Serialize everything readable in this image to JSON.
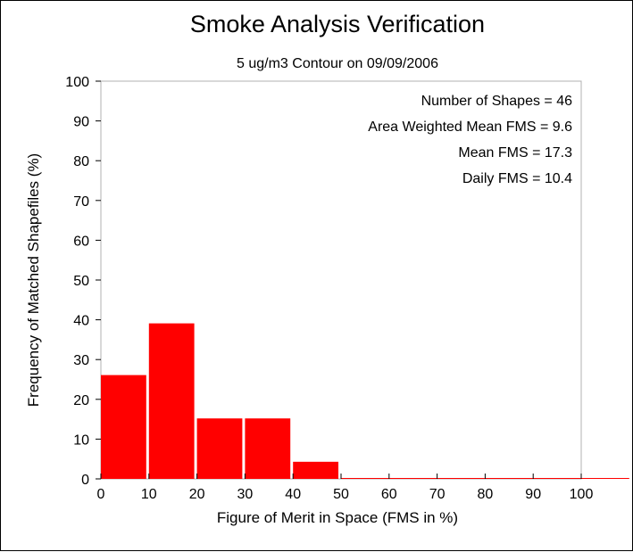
{
  "chart_data": {
    "type": "bar",
    "title": "Smoke Analysis Verification",
    "subtitle": "5 ug/m3 Contour on 09/09/2006",
    "xlabel": "Figure of Merit in Space (FMS in %)",
    "ylabel": "Frequency of Matched Shapefiles (%)",
    "xlim": [
      0,
      100
    ],
    "ylim": [
      0,
      100
    ],
    "x_ticks": [
      "0",
      "10",
      "20",
      "30",
      "40",
      "50",
      "60",
      "70",
      "80",
      "90",
      "100"
    ],
    "y_ticks": [
      "0",
      "10",
      "20",
      "30",
      "40",
      "50",
      "60",
      "70",
      "80",
      "90",
      "100"
    ],
    "bins": [
      [
        0,
        10
      ],
      [
        10,
        20
      ],
      [
        20,
        30
      ],
      [
        30,
        40
      ],
      [
        40,
        50
      ],
      [
        50,
        60
      ],
      [
        60,
        70
      ],
      [
        70,
        80
      ],
      [
        80,
        90
      ],
      [
        90,
        100
      ],
      [
        100,
        110
      ]
    ],
    "values": [
      26.1,
      39.1,
      15.2,
      15.2,
      4.3,
      0,
      0,
      0,
      0,
      0,
      0
    ],
    "bar_color": "#ff0000",
    "stats": [
      "Number of Shapes = 46",
      "Area Weighted Mean FMS = 9.6",
      "Mean FMS = 17.3",
      "Daily FMS = 10.4"
    ]
  }
}
